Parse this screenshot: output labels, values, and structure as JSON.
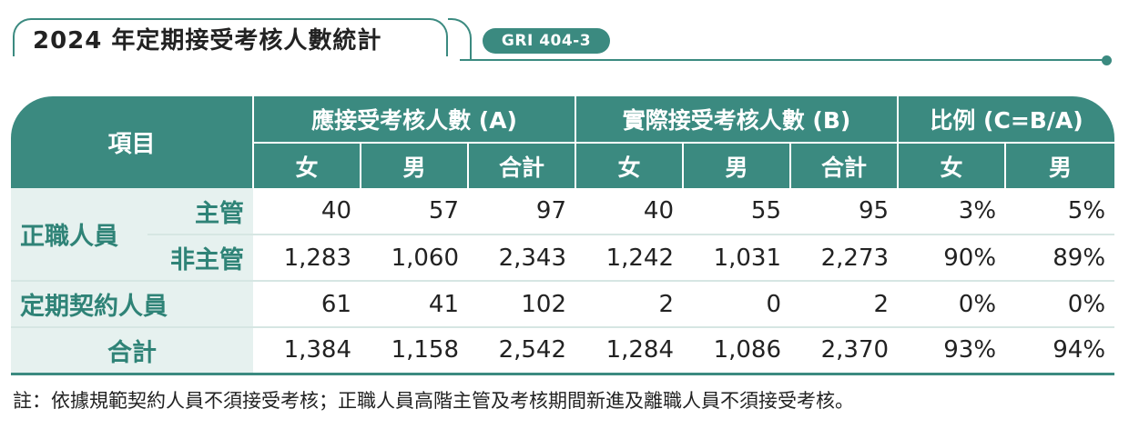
{
  "title": "2024 年定期接受考核人數統計",
  "badge": "GRI 404-3",
  "header": {
    "item": "項目",
    "group_a": "應接受考核人數 (A)",
    "group_b": "實際接受考核人數 (B)",
    "group_c": "比例 (C=B/A)",
    "female": "女",
    "male": "男",
    "total": "合計"
  },
  "rows": {
    "regular_label": "正職人員",
    "manager": {
      "label": "主管",
      "a_f": "40",
      "a_m": "57",
      "a_t": "97",
      "b_f": "40",
      "b_m": "55",
      "b_t": "95",
      "c_f": "3%",
      "c_m": "5%"
    },
    "non_manager": {
      "label": "非主管",
      "a_f": "1,283",
      "a_m": "1,060",
      "a_t": "2,343",
      "b_f": "1,242",
      "b_m": "1,031",
      "b_t": "2,273",
      "c_f": "90%",
      "c_m": "89%"
    },
    "contract": {
      "label": "定期契約人員",
      "a_f": "61",
      "a_m": "41",
      "a_t": "102",
      "b_f": "2",
      "b_m": "0",
      "b_t": "2",
      "c_f": "0%",
      "c_m": "0%"
    },
    "total": {
      "label": "合計",
      "a_f": "1,384",
      "a_m": "1,158",
      "a_t": "2,542",
      "b_f": "1,284",
      "b_m": "1,086",
      "b_t": "2,370",
      "c_f": "93%",
      "c_m": "94%"
    }
  },
  "note": "註：依據規範契約人員不須接受考核；正職人員高階主管及考核期間新進及離職人員不須接受考核。",
  "colors": {
    "accent": "#3b8a80",
    "label_bg": "#e6f1ef",
    "label_text": "#2f8377"
  }
}
